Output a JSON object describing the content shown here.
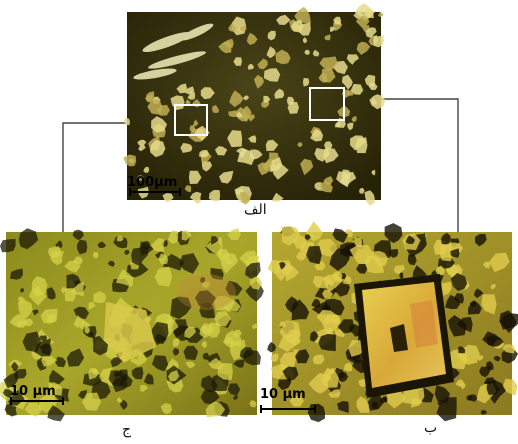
{
  "figure": {
    "panels": [
      {
        "id": "a",
        "label": "الف",
        "scale_text": "100µm"
      },
      {
        "id": "b",
        "label": "ب",
        "scale_text": "10 µm"
      },
      {
        "id": "c",
        "label": "ج",
        "scale_text": "10 µm"
      }
    ]
  }
}
